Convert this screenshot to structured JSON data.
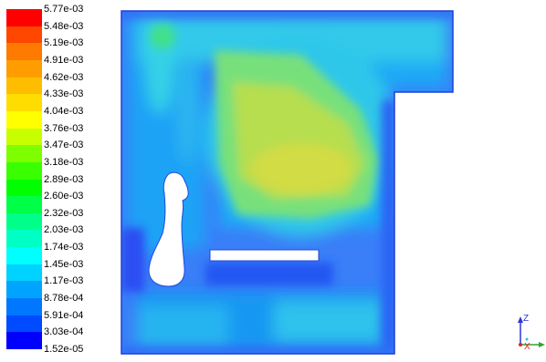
{
  "chart_data": {
    "type": "heatmap",
    "title": "",
    "xlabel": "",
    "ylabel": "",
    "colorbar": {
      "levels": [
        "5.77e-03",
        "5.48e-03",
        "5.19e-03",
        "4.91e-03",
        "4.62e-03",
        "4.33e-03",
        "4.04e-03",
        "3.76e-03",
        "3.47e-03",
        "3.18e-03",
        "2.89e-03",
        "2.60e-03",
        "2.32e-03",
        "2.03e-03",
        "1.74e-03",
        "1.45e-03",
        "1.17e-03",
        "8.78e-04",
        "5.91e-04",
        "3.03e-04",
        "1.52e-05"
      ],
      "colors": [
        "#ff0000",
        "#ff4700",
        "#ff7a00",
        "#ff9d00",
        "#ffbd00",
        "#ffdd00",
        "#ffff00",
        "#c8ff00",
        "#7dff00",
        "#39ff00",
        "#00ff00",
        "#00ff47",
        "#00ff8a",
        "#00ffc4",
        "#00ffff",
        "#00d2ff",
        "#00a4ff",
        "#0077ff",
        "#004aff",
        "#0000ff"
      ],
      "min": 1.52e-05,
      "max": 0.00577
    },
    "field_summary": {
      "background_level": "1.17e-03",
      "peak_level": "3.76e-03",
      "peak_region": "upper-center"
    }
  },
  "axes_triad": {
    "z_label": "Z",
    "x_label": "X"
  }
}
